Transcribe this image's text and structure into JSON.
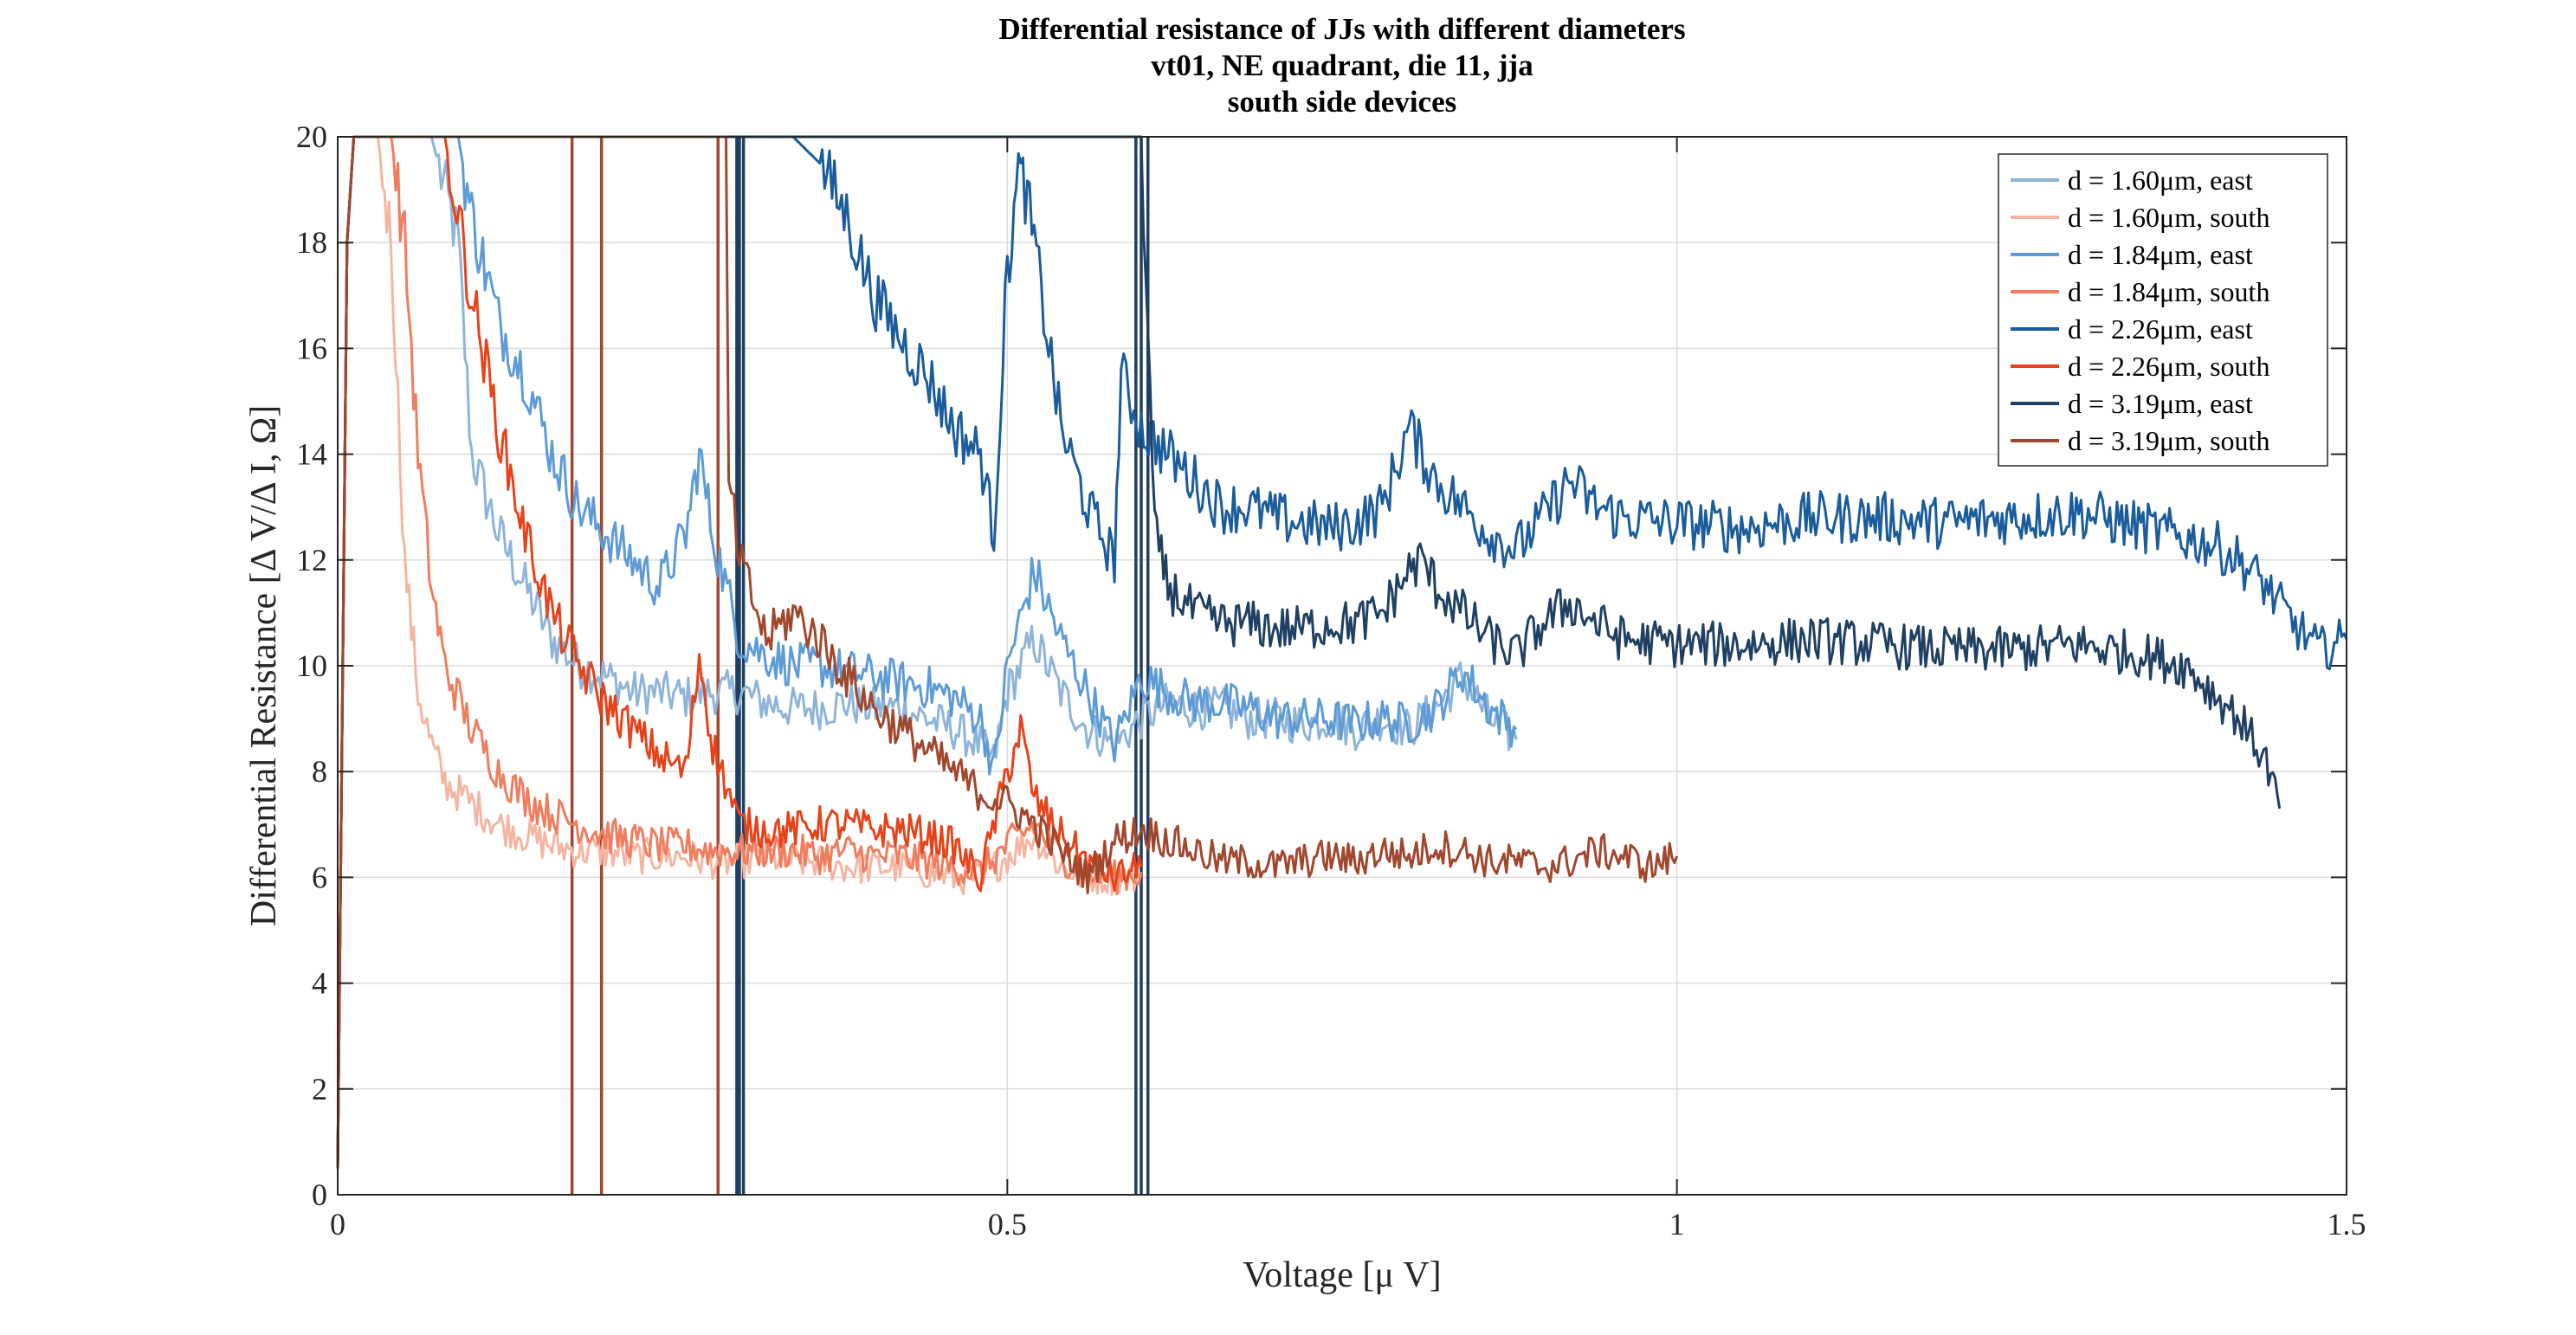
{
  "chart_data": {
    "type": "line",
    "title": [
      "Differential resistance of JJs with different diameters",
      "vt01, NE quadrant, die 11, jja",
      "south side devices"
    ],
    "xlabel": "Voltage [μ V]",
    "ylabel": "Differential Resistance [Δ V/Δ I, Ω]",
    "xlim": [
      0,
      1.5
    ],
    "ylim": [
      0,
      20
    ],
    "xticks": [
      0,
      0.5,
      1,
      1.5
    ],
    "xtick_labels": [
      "0",
      "0.5",
      "1",
      "1.5"
    ],
    "yticks": [
      0,
      2,
      4,
      6,
      8,
      10,
      12,
      14,
      16,
      18,
      20
    ],
    "ytick_labels": [
      "0",
      "2",
      "4",
      "6",
      "8",
      "10",
      "12",
      "14",
      "16",
      "18",
      "20"
    ],
    "grid": true,
    "legend_position": "top-right",
    "series": [
      {
        "name": "d = 1.60μm, east",
        "color": "#8fb4d9",
        "x": [
          0.0,
          0.003,
          0.007,
          0.012,
          0.02,
          0.03,
          0.05,
          0.07,
          0.09,
          0.1,
          0.12,
          0.14,
          0.16,
          0.18,
          0.2,
          0.22,
          0.24,
          0.26,
          0.28,
          0.3,
          0.32,
          0.34,
          0.36,
          0.38,
          0.4,
          0.42,
          0.44,
          0.46,
          0.48,
          0.49,
          0.5,
          0.52,
          0.54,
          0.56,
          0.58,
          0.6,
          0.62,
          0.64,
          0.66,
          0.68,
          0.7,
          0.72,
          0.74,
          0.76,
          0.78,
          0.8,
          0.82,
          0.84,
          0.86,
          0.88
        ],
        "y": [
          0.5,
          8,
          18,
          20,
          20,
          20,
          20,
          20,
          18,
          14,
          12.5,
          11.5,
          10.5,
          10.0,
          9.8,
          9.5,
          9.5,
          9.4,
          9.5,
          9.5,
          9.3,
          9.2,
          9.2,
          9.3,
          9.2,
          9.2,
          9.0,
          8.8,
          8.5,
          8.2,
          9.5,
          10.5,
          9.5,
          8.8,
          8.5,
          9.0,
          9.3,
          9.2,
          9.2,
          9.0,
          9.0,
          8.9,
          9.0,
          8.8,
          9.0,
          8.8,
          9.2,
          9.8,
          9.0,
          8.6
        ]
      },
      {
        "name": "d = 1.60μm, south",
        "color": "#f4b6a2",
        "x": [
          0.0,
          0.003,
          0.007,
          0.012,
          0.02,
          0.03,
          0.04,
          0.05,
          0.06,
          0.07,
          0.08,
          0.1,
          0.12,
          0.14,
          0.16,
          0.18,
          0.2,
          0.22,
          0.24,
          0.26,
          0.28,
          0.3,
          0.32,
          0.34,
          0.36,
          0.38,
          0.4,
          0.42,
          0.44,
          0.46,
          0.48,
          0.5,
          0.52,
          0.54,
          0.56,
          0.58,
          0.6
        ],
        "y": [
          0.5,
          8,
          18,
          20,
          20,
          20,
          18,
          12,
          9.5,
          8.5,
          7.8,
          7.4,
          7.0,
          6.8,
          6.6,
          6.5,
          6.5,
          6.4,
          6.4,
          6.4,
          6.3,
          6.3,
          6.4,
          6.3,
          6.3,
          6.2,
          6.2,
          6.2,
          6.1,
          6.0,
          6.0,
          6.4,
          6.8,
          6.2,
          6.0,
          6.0,
          6.0
        ]
      },
      {
        "name": "d = 1.84μm, east",
        "color": "#5d9bd6",
        "x": [
          0.0,
          0.003,
          0.007,
          0.012,
          0.02,
          0.03,
          0.05,
          0.07,
          0.09,
          0.1,
          0.11,
          0.12,
          0.14,
          0.16,
          0.18,
          0.2,
          0.22,
          0.24,
          0.26,
          0.27,
          0.28,
          0.3,
          0.32,
          0.34,
          0.36,
          0.38,
          0.4,
          0.42,
          0.44,
          0.46,
          0.48,
          0.49,
          0.5,
          0.52,
          0.54,
          0.56,
          0.58,
          0.6,
          0.62,
          0.64,
          0.66,
          0.68,
          0.7,
          0.72,
          0.74,
          0.76,
          0.78,
          0.8,
          0.82,
          0.84,
          0.86,
          0.88
        ],
        "y": [
          0.5,
          8,
          18,
          20,
          20,
          20,
          20,
          20,
          20,
          18.5,
          17.5,
          16.5,
          15.5,
          14.0,
          13.0,
          12.5,
          12.0,
          11.5,
          12.5,
          14.0,
          12.5,
          10.5,
          10.2,
          10.0,
          10.0,
          9.9,
          9.8,
          9.7,
          9.6,
          9.4,
          9.0,
          8.0,
          10.0,
          11.8,
          10.5,
          9.5,
          8.5,
          9.8,
          9.5,
          9.3,
          9.3,
          9.2,
          9.0,
          9.0,
          9.0,
          8.9,
          9.0,
          8.9,
          9.2,
          9.9,
          9.2,
          8.8
        ]
      },
      {
        "name": "d = 1.84μm, south",
        "color": "#ef7d5e",
        "x": [
          0.0,
          0.003,
          0.007,
          0.012,
          0.02,
          0.03,
          0.04,
          0.05,
          0.06,
          0.07,
          0.08,
          0.1,
          0.12,
          0.14,
          0.16,
          0.18,
          0.2,
          0.22,
          0.24,
          0.26,
          0.28,
          0.3,
          0.32,
          0.34,
          0.36,
          0.38,
          0.4,
          0.42,
          0.44,
          0.46,
          0.48,
          0.5,
          0.52,
          0.54,
          0.56,
          0.58,
          0.6
        ],
        "y": [
          0.5,
          8,
          18,
          20,
          20,
          20,
          20,
          18,
          14,
          11.5,
          10.0,
          8.8,
          8.0,
          7.5,
          7.2,
          7.0,
          6.8,
          6.7,
          6.6,
          6.6,
          6.5,
          6.5,
          6.5,
          6.5,
          6.4,
          6.5,
          6.4,
          6.4,
          6.3,
          6.2,
          6.1,
          6.6,
          7.0,
          6.4,
          6.1,
          6.0,
          6.1
        ]
      },
      {
        "name": "d = 2.26μm, east",
        "color": "#1a5c9c",
        "x": [
          0.0,
          0.003,
          0.007,
          0.012,
          0.3,
          0.32,
          0.34,
          0.36,
          0.38,
          0.4,
          0.42,
          0.44,
          0.46,
          0.48,
          0.49,
          0.5,
          0.51,
          0.52,
          0.54,
          0.56,
          0.58,
          0.585,
          0.6,
          0.62,
          0.64,
          0.66,
          0.68,
          0.7,
          0.72,
          0.74,
          0.76,
          0.78,
          0.8,
          0.82,
          0.84,
          0.86,
          0.88,
          0.9,
          0.92,
          0.94,
          0.96,
          1.0,
          1.05,
          1.1,
          1.15,
          1.2,
          1.25,
          1.3,
          1.35,
          1.4,
          1.42,
          1.44,
          1.46,
          1.48,
          1.5
        ],
        "y": [
          0.5,
          8,
          18,
          20,
          20,
          20,
          20,
          19.5,
          18.5,
          17.0,
          16.2,
          15.5,
          14.5,
          14.0,
          12.5,
          17.5,
          19.5,
          18.0,
          14.5,
          13.0,
          12.0,
          15.5,
          14.5,
          14.0,
          13.5,
          13.0,
          13.0,
          12.8,
          12.7,
          12.6,
          12.7,
          13.0,
          14.5,
          13.5,
          13.0,
          12.5,
          12.2,
          12.8,
          13.5,
          13.0,
          12.8,
          12.7,
          12.6,
          12.8,
          12.8,
          12.7,
          12.8,
          12.9,
          12.6,
          12.3,
          12.0,
          11.5,
          10.8,
          10.3,
          10.5
        ]
      },
      {
        "name": "d = 2.26μm, south",
        "color": "#e8421a",
        "x": [
          0.0,
          0.003,
          0.007,
          0.012,
          0.02,
          0.03,
          0.04,
          0.05,
          0.06,
          0.07,
          0.08,
          0.1,
          0.12,
          0.14,
          0.16,
          0.18,
          0.2,
          0.22,
          0.24,
          0.26,
          0.27,
          0.28,
          0.3,
          0.32,
          0.34,
          0.36,
          0.38,
          0.4,
          0.42,
          0.44,
          0.46,
          0.48,
          0.5,
          0.51,
          0.52,
          0.54,
          0.56,
          0.58,
          0.6
        ],
        "y": [
          0.5,
          8,
          18,
          20,
          20,
          20,
          20,
          20,
          20,
          20,
          20,
          17.0,
          14.5,
          12.5,
          11.0,
          10.0,
          9.3,
          8.8,
          8.3,
          8.0,
          10.2,
          8.5,
          7.0,
          6.9,
          6.9,
          7.0,
          7.0,
          6.9,
          6.9,
          6.8,
          6.6,
          6.0,
          8.0,
          8.8,
          7.5,
          6.8,
          6.3,
          6.0,
          6.2
        ]
      },
      {
        "name": "d = 3.19μm, east",
        "color": "#1f3f63",
        "x": [
          0.0,
          0.003,
          0.007,
          0.012,
          0.3,
          0.6,
          0.61,
          0.62,
          0.64,
          0.66,
          0.68,
          0.7,
          0.72,
          0.74,
          0.76,
          0.78,
          0.8,
          0.81,
          0.82,
          0.84,
          0.86,
          0.88,
          0.9,
          0.92,
          0.94,
          0.96,
          1.0,
          1.05,
          1.1,
          1.15,
          1.2,
          1.25,
          1.3,
          1.35,
          1.38,
          1.4,
          1.42,
          1.44,
          1.45
        ],
        "y": [
          0.5,
          8,
          18,
          20,
          20,
          20,
          12.5,
          11.5,
          11.0,
          10.8,
          10.8,
          10.7,
          10.7,
          10.8,
          10.8,
          11.0,
          11.8,
          12.0,
          11.5,
          11.0,
          10.5,
          10.2,
          10.8,
          11.2,
          10.8,
          10.5,
          10.4,
          10.4,
          10.5,
          10.4,
          10.3,
          10.3,
          10.4,
          10.2,
          10.0,
          9.5,
          9.0,
          8.2,
          7.3
        ]
      },
      {
        "name": "d = 3.19μm, south",
        "color": "#a0472e",
        "x": [
          0.0,
          0.003,
          0.007,
          0.012,
          0.29,
          0.292,
          0.3,
          0.32,
          0.34,
          0.36,
          0.38,
          0.4,
          0.42,
          0.44,
          0.46,
          0.48,
          0.5,
          0.52,
          0.54,
          0.56,
          0.58,
          0.6,
          0.62,
          0.64,
          0.66,
          0.68,
          0.7,
          0.72,
          0.74,
          0.76,
          0.78,
          0.8,
          0.82,
          0.84,
          0.86,
          0.88,
          0.9,
          0.92,
          0.94,
          0.96,
          0.98,
          1.0
        ],
        "y": [
          0.5,
          8,
          18,
          20,
          20,
          13.5,
          12.0,
          10.5,
          11.0,
          10.5,
          9.8,
          9.2,
          8.8,
          8.4,
          8.0,
          7.6,
          7.4,
          7.0,
          6.5,
          6.0,
          6.7,
          6.9,
          6.7,
          6.5,
          6.3,
          6.3,
          6.2,
          6.3,
          6.4,
          6.3,
          6.5,
          6.4,
          6.6,
          6.5,
          6.3,
          6.3,
          6.2,
          6.3,
          6.5,
          6.4,
          6.2,
          6.4
        ]
      }
    ],
    "vertical_spikes": [
      {
        "x": [
          0.175,
          0.197,
          0.284
        ],
        "color": "#a0472e"
      },
      {
        "x": [
          0.298,
          0.3,
          0.303,
          0.596,
          0.6,
          0.605
        ],
        "color": "#1f3f63"
      }
    ]
  }
}
